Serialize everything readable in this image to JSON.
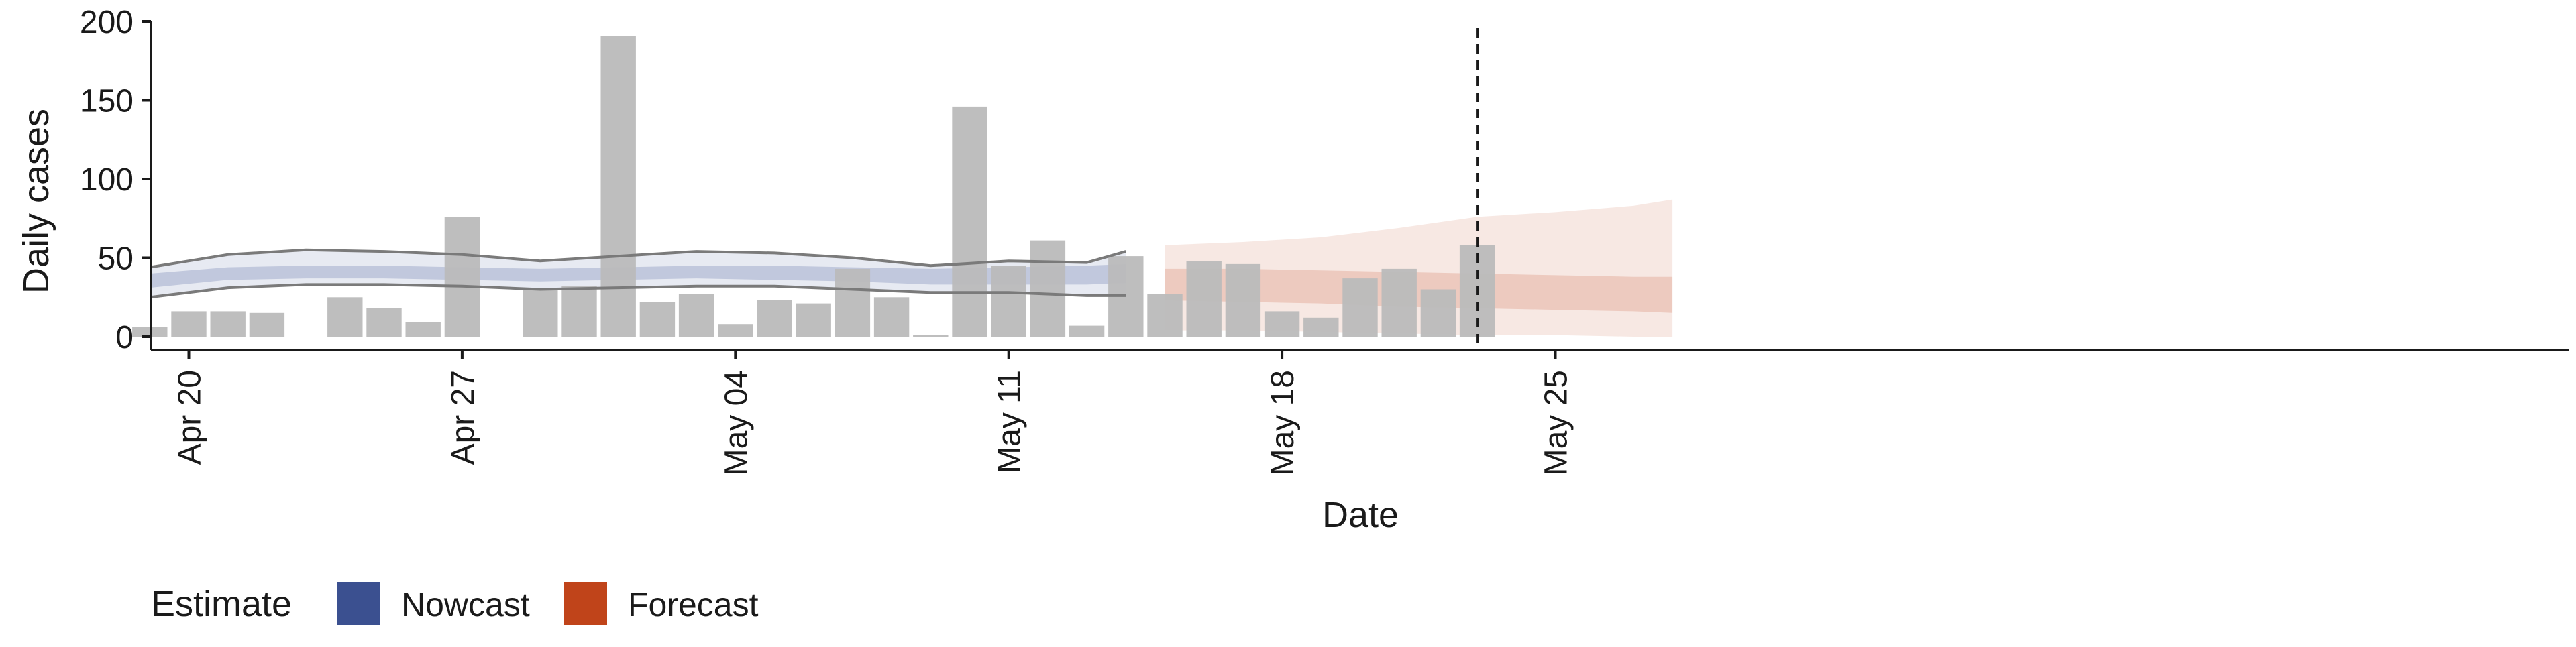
{
  "chart_data": {
    "type": "bar",
    "title": "",
    "xlabel": "Date",
    "ylabel": "Daily cases",
    "ylim": [
      0,
      200
    ],
    "y_ticks": [
      0,
      50,
      100,
      150,
      200
    ],
    "x_start": "2020-04-19",
    "x_end": "2020-05-28",
    "x_ticks": [
      {
        "date": "2020-04-20",
        "label": "Apr 20"
      },
      {
        "date": "2020-04-27",
        "label": "Apr 27"
      },
      {
        "date": "2020-05-04",
        "label": "May 04"
      },
      {
        "date": "2020-05-11",
        "label": "May 11"
      },
      {
        "date": "2020-05-18",
        "label": "May 18"
      },
      {
        "date": "2020-05-25",
        "label": "May 25"
      }
    ],
    "cases": [
      {
        "date": "2020-04-19",
        "value": 6
      },
      {
        "date": "2020-04-20",
        "value": 16
      },
      {
        "date": "2020-04-21",
        "value": 16
      },
      {
        "date": "2020-04-22",
        "value": 15
      },
      {
        "date": "2020-04-24",
        "value": 25
      },
      {
        "date": "2020-04-25",
        "value": 18
      },
      {
        "date": "2020-04-26",
        "value": 9
      },
      {
        "date": "2020-04-27",
        "value": 76
      },
      {
        "date": "2020-04-29",
        "value": 31
      },
      {
        "date": "2020-04-30",
        "value": 32
      },
      {
        "date": "2020-05-01",
        "value": 191
      },
      {
        "date": "2020-05-02",
        "value": 22
      },
      {
        "date": "2020-05-03",
        "value": 27
      },
      {
        "date": "2020-05-04",
        "value": 8
      },
      {
        "date": "2020-05-05",
        "value": 23
      },
      {
        "date": "2020-05-06",
        "value": 21
      },
      {
        "date": "2020-05-07",
        "value": 43
      },
      {
        "date": "2020-05-08",
        "value": 25
      },
      {
        "date": "2020-05-09",
        "value": 1
      },
      {
        "date": "2020-05-10",
        "value": 146
      },
      {
        "date": "2020-05-11",
        "value": 45
      },
      {
        "date": "2020-05-12",
        "value": 61
      },
      {
        "date": "2020-05-13",
        "value": 7
      },
      {
        "date": "2020-05-14",
        "value": 51
      },
      {
        "date": "2020-05-15",
        "value": 27
      },
      {
        "date": "2020-05-16",
        "value": 48
      },
      {
        "date": "2020-05-17",
        "value": 46
      },
      {
        "date": "2020-05-18",
        "value": 16
      },
      {
        "date": "2020-05-19",
        "value": 12
      },
      {
        "date": "2020-05-20",
        "value": 37
      },
      {
        "date": "2020-05-21",
        "value": 43
      },
      {
        "date": "2020-05-22",
        "value": 30
      },
      {
        "date": "2020-05-23",
        "value": 58
      }
    ],
    "series": [
      {
        "name": "Nowcast",
        "color": "#3b5090",
        "x": [
          "2020-04-19",
          "2020-04-21",
          "2020-04-23",
          "2020-04-25",
          "2020-04-27",
          "2020-04-29",
          "2020-05-01",
          "2020-05-03",
          "2020-05-05",
          "2020-05-07",
          "2020-05-09",
          "2020-05-11",
          "2020-05-13",
          "2020-05-14"
        ],
        "median": [
          36,
          40,
          41,
          41,
          40,
          39,
          40,
          41,
          41,
          40,
          38,
          38,
          39,
          40
        ],
        "inner_lower": [
          31,
          36,
          37,
          37,
          36,
          35,
          36,
          37,
          36,
          35,
          33,
          33,
          33,
          34
        ],
        "inner_upper": [
          40,
          44,
          45,
          45,
          44,
          43,
          44,
          45,
          45,
          44,
          43,
          44,
          45,
          46
        ],
        "outer_lower": [
          25,
          31,
          33,
          33,
          32,
          30,
          31,
          32,
          32,
          30,
          28,
          28,
          26,
          26
        ],
        "outer_upper": [
          44,
          52,
          55,
          54,
          52,
          48,
          51,
          54,
          53,
          50,
          45,
          48,
          47,
          54
        ]
      },
      {
        "name": "Forecast",
        "color": "#c0441a",
        "x": [
          "2020-05-15",
          "2020-05-17",
          "2020-05-19",
          "2020-05-21",
          "2020-05-23",
          "2020-05-25",
          "2020-05-27",
          "2020-05-28"
        ],
        "median": [
          33,
          32,
          31,
          29,
          28,
          26,
          25,
          25
        ],
        "inner_lower": [
          23,
          22,
          21,
          19,
          18,
          17,
          16,
          15
        ],
        "inner_upper": [
          43,
          43,
          42,
          41,
          40,
          39,
          38,
          38
        ],
        "outer_lower": [
          4,
          4,
          3,
          2,
          1,
          1,
          0,
          0
        ],
        "outer_upper": [
          58,
          60,
          63,
          69,
          76,
          79,
          83,
          87
        ]
      }
    ],
    "vline_date": "2020-05-23",
    "legend": {
      "title": "Estimate",
      "position": "bottom-left",
      "items": [
        {
          "label": "Nowcast",
          "color": "#3b5090"
        },
        {
          "label": "Forecast",
          "color": "#c0441a"
        }
      ]
    },
    "colors": {
      "bar": "#bbbbbb",
      "axis": "#1a1a1a",
      "ribbon_edge": "#7a7a7a"
    }
  }
}
